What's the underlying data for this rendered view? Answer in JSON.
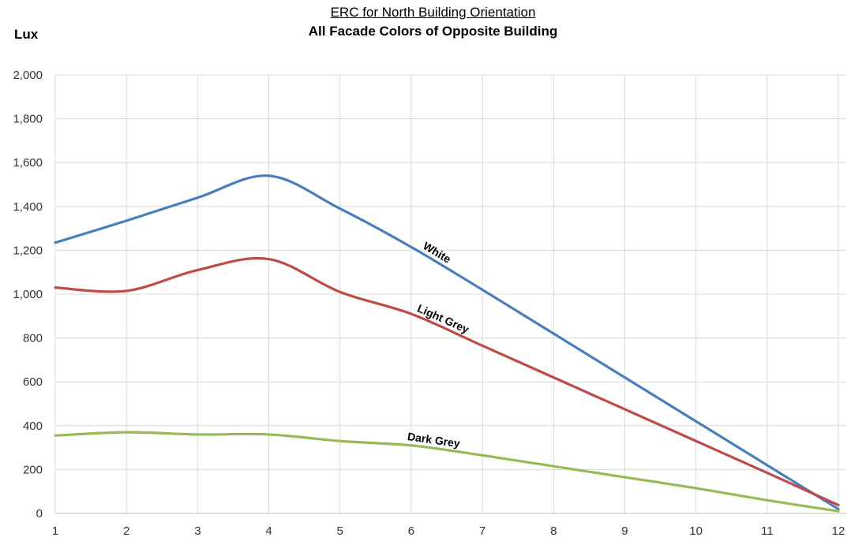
{
  "chart_data": {
    "type": "line",
    "title": "ERC for North Building  Orientation",
    "subtitle": "All Facade  Colors of Opposite Building",
    "ylabel": "Lux",
    "xlabel": "",
    "x": [
      1,
      2,
      3,
      4,
      5,
      6,
      7,
      8,
      9,
      10,
      11,
      12
    ],
    "ylim": [
      0,
      2000
    ],
    "yticks": [
      "0",
      "200",
      "400",
      "600",
      "800",
      "1,000",
      "1,200",
      "1,400",
      "1,600",
      "1,800",
      "2,000"
    ],
    "grid": true,
    "legend": "none",
    "series": [
      {
        "name": "White",
        "color": "#4a7ebb",
        "values": [
          1235,
          1335,
          1440,
          1540,
          1390,
          1215,
          1020,
          820,
          620,
          420,
          220,
          20
        ]
      },
      {
        "name": "Light Grey",
        "color": "#be4b48",
        "values": [
          1030,
          1015,
          1110,
          1160,
          1010,
          910,
          765,
          620,
          475,
          330,
          185,
          38
        ]
      },
      {
        "name": "Dark Grey",
        "color": "#98b954",
        "values": [
          355,
          370,
          360,
          360,
          330,
          310,
          265,
          215,
          165,
          115,
          60,
          10
        ]
      }
    ]
  }
}
